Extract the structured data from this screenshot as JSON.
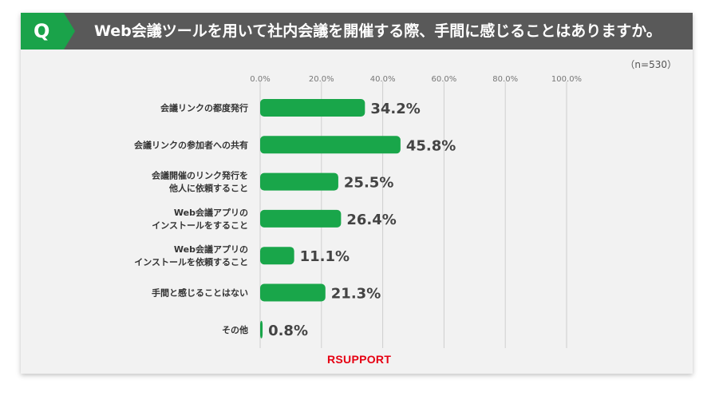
{
  "header": {
    "badge": "Q",
    "title": "Web会議ツールを用いて社内会議を開催する際、手間に感じることはありますか。"
  },
  "sample_size": "（n=530）",
  "logo_text": "RSUPPORT",
  "colors": {
    "bar": "#19a64a",
    "header": "#595959",
    "badge": "#1aa34a",
    "logo": "#e60012"
  },
  "chart_data": {
    "type": "bar",
    "orientation": "horizontal",
    "title": "",
    "xlabel": "",
    "ylabel": "",
    "xlim": [
      0,
      100
    ],
    "ticks": [
      "0.0%",
      "20.0%",
      "40.0%",
      "60.0%",
      "80.0%",
      "100.0%"
    ],
    "tick_values": [
      0,
      20,
      40,
      60,
      80,
      100
    ],
    "grid": true,
    "categories": [
      [
        "会議リンクの都度発行"
      ],
      [
        "会議リンクの参加者への共有"
      ],
      [
        "会議開催のリンク発行を",
        "他人に依頼すること"
      ],
      [
        "Web会議アプリの",
        "インストールをすること"
      ],
      [
        "Web会議アプリの",
        "インストールを依頼すること"
      ],
      [
        "手間と感じることはない"
      ],
      [
        "その他"
      ]
    ],
    "values": [
      34.2,
      45.8,
      25.5,
      26.4,
      11.1,
      21.3,
      0.8
    ],
    "value_labels": [
      "34.2%",
      "45.8%",
      "25.5%",
      "26.4%",
      "11.1%",
      "21.3%",
      "0.8%"
    ]
  }
}
